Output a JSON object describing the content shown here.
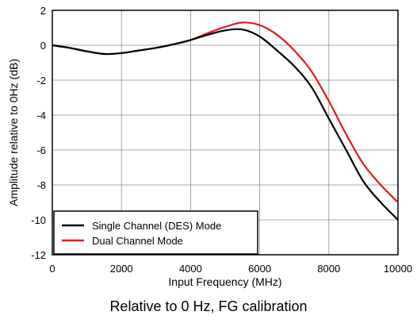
{
  "chart_data": {
    "type": "line",
    "xlabel": "Input Frequency  (MHz)",
    "ylabel": "Amplitude relative to 0Hz  (dB)",
    "xlim": [
      0,
      10000
    ],
    "ylim": [
      -12,
      2
    ],
    "x_ticks": [
      0,
      2000,
      4000,
      6000,
      8000,
      10000
    ],
    "y_ticks": [
      2,
      0,
      -2,
      -4,
      -6,
      -8,
      -10,
      -12
    ],
    "grid": true,
    "legend_position": "bottom-left",
    "series": [
      {
        "name": "Single Channel  (DES) Mode",
        "color": "#000000",
        "x": [
          0,
          500,
          1000,
          1500,
          2000,
          2500,
          3000,
          3500,
          4000,
          4500,
          5000,
          5500,
          6000,
          6500,
          7000,
          7500,
          8000,
          8500,
          9000,
          9500,
          10000
        ],
        "y": [
          0,
          -0.15,
          -0.35,
          -0.5,
          -0.45,
          -0.3,
          -0.15,
          0.05,
          0.3,
          0.6,
          0.85,
          0.9,
          0.5,
          -0.3,
          -1.2,
          -2.4,
          -4.2,
          -6.0,
          -7.8,
          -9.0,
          -10.0
        ]
      },
      {
        "name": "Dual Channel Mode",
        "color": "#e41a1c",
        "x": [
          0,
          500,
          1000,
          1500,
          2000,
          2500,
          3000,
          3500,
          4000,
          4500,
          5000,
          5500,
          6000,
          6500,
          7000,
          7500,
          8000,
          8500,
          9000,
          9500,
          10000
        ],
        "y": [
          0,
          -0.15,
          -0.35,
          -0.5,
          -0.45,
          -0.3,
          -0.15,
          0.05,
          0.3,
          0.7,
          1.05,
          1.3,
          1.15,
          0.6,
          -0.3,
          -1.5,
          -3.2,
          -5.1,
          -6.8,
          -8.0,
          -9.0
        ]
      }
    ]
  },
  "caption": "Relative to 0 Hz, FG calibration"
}
